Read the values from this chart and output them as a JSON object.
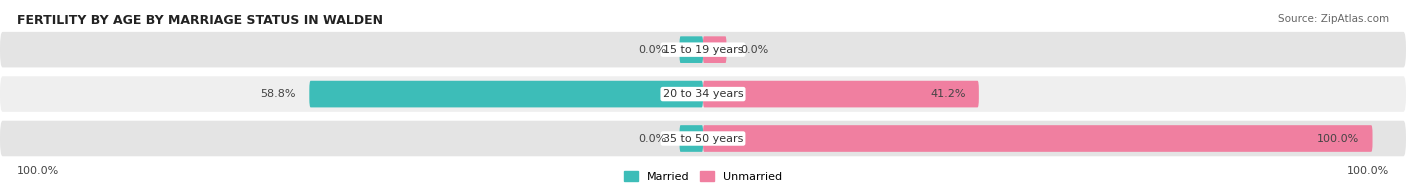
{
  "title": "FERTILITY BY AGE BY MARRIAGE STATUS IN WALDEN",
  "source": "Source: ZipAtlas.com",
  "categories": [
    "15 to 19 years",
    "20 to 34 years",
    "35 to 50 years"
  ],
  "married_values": [
    0.0,
    58.8,
    0.0
  ],
  "unmarried_values": [
    0.0,
    41.2,
    100.0
  ],
  "married_color": "#3dbdb8",
  "unmarried_color": "#f07fa0",
  "row_bg_odd": "#efefef",
  "row_bg_even": "#e4e4e4",
  "left_axis_label": "100.0%",
  "right_axis_label": "100.0%",
  "max_val": 100.0,
  "title_fontsize": 9,
  "label_fontsize": 8,
  "tick_fontsize": 8,
  "legend_fontsize": 8,
  "source_fontsize": 7.5
}
